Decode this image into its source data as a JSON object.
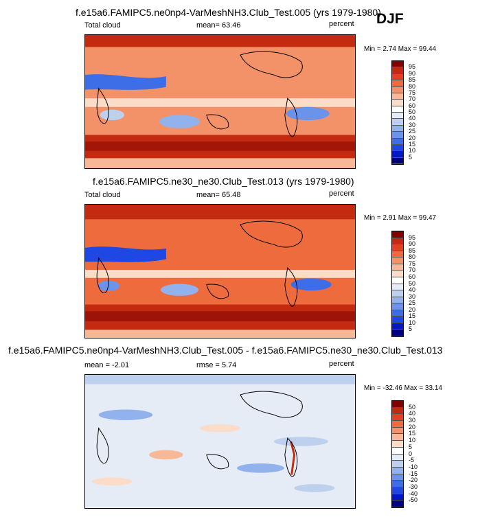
{
  "season": "DJF",
  "panels": [
    {
      "title": "f.e15a6.FAMIPC5.ne0np4-VarMeshNH3.Club_Test.005 (yrs 1979-1980)",
      "left_label": "Total cloud",
      "center_label": "mean=  63.46",
      "right_label": "percent",
      "minmax": "Min =   2.74  Max =  99.44"
    },
    {
      "title": "f.e15a6.FAMIPC5.ne30_ne30.Club_Test.013 (yrs 1979-1980)",
      "left_label": "Total cloud",
      "center_label": "mean=  65.48",
      "right_label": "percent",
      "minmax": "Min =   2.91  Max =  99.47"
    },
    {
      "title": "f.e15a6.FAMIPC5.ne0np4-VarMeshNH3.Club_Test.005 - f.e15a6.FAMIPC5.ne30_ne30.Club_Test.013",
      "left_label": "mean =  -2.01",
      "center_label": "rmse =   5.74",
      "right_label": "percent",
      "minmax": "Min = -32.46  Max =  33.14"
    }
  ],
  "chart_data": [
    {
      "type": "heatmap",
      "title": "f.e15a6.FAMIPC5.ne0np4-VarMeshNH3.Club_Test.005 (yrs 1979-1980)",
      "variable": "Total cloud",
      "units": "percent",
      "mean": 63.46,
      "min": 2.74,
      "max": 99.44,
      "levels": [
        "5",
        "10",
        "15",
        "20",
        "25",
        "30",
        "40",
        "50",
        "60",
        "70",
        "75",
        "80",
        "85",
        "90",
        "95"
      ],
      "colors": [
        "#00007f",
        "#0018c8",
        "#1f47e3",
        "#3e6de8",
        "#6b93ea",
        "#91b2ec",
        "#bdd0ee",
        "#e6ecf5",
        "#ffffff",
        "#fbdcc8",
        "#f7b898",
        "#f39268",
        "#ee6b3e",
        "#e04120",
        "#c42a10",
        "#7f0000"
      ]
    },
    {
      "type": "heatmap",
      "title": "f.e15a6.FAMIPC5.ne30_ne30.Club_Test.013 (yrs 1979-1980)",
      "variable": "Total cloud",
      "units": "percent",
      "mean": 65.48,
      "min": 2.91,
      "max": 99.47,
      "levels": [
        "5",
        "10",
        "15",
        "20",
        "25",
        "30",
        "40",
        "50",
        "60",
        "70",
        "75",
        "80",
        "85",
        "90",
        "95"
      ],
      "colors": [
        "#00007f",
        "#0018c8",
        "#1f47e3",
        "#3e6de8",
        "#6b93ea",
        "#91b2ec",
        "#bdd0ee",
        "#e6ecf5",
        "#ffffff",
        "#fbdcc8",
        "#f7b898",
        "#f39268",
        "#ee6b3e",
        "#e04120",
        "#c42a10",
        "#7f0000"
      ]
    },
    {
      "type": "heatmap",
      "title": "f.e15a6.FAMIPC5.ne0np4-VarMeshNH3.Club_Test.005 - f.e15a6.FAMIPC5.ne30_ne30.Club_Test.013",
      "units": "percent",
      "mean": -2.01,
      "rmse": 5.74,
      "min": -32.46,
      "max": 33.14,
      "levels": [
        "-50",
        "-40",
        "-30",
        "-20",
        "-15",
        "-10",
        "-5",
        "0",
        "5",
        "10",
        "15",
        "20",
        "30",
        "40",
        "50"
      ],
      "colors": [
        "#00007f",
        "#0018c8",
        "#1f47e3",
        "#3e6de8",
        "#6b93ea",
        "#91b2ec",
        "#bdd0ee",
        "#e6ecf5",
        "#ffffff",
        "#fbdcc8",
        "#f7b898",
        "#f39268",
        "#ee6b3e",
        "#e04120",
        "#c42a10",
        "#7f0000"
      ]
    }
  ]
}
